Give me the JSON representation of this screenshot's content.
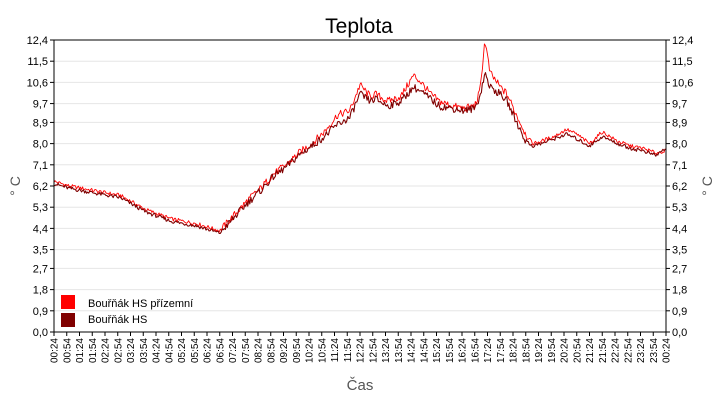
{
  "chart_data": {
    "type": "line",
    "title": "Teplota",
    "xlabel": "Čas",
    "ylabel": "° C",
    "ylim": [
      0,
      12.4
    ],
    "yticks": [
      "0,0",
      "0,9",
      "1,8",
      "2,7",
      "3,5",
      "4,4",
      "5,3",
      "6,2",
      "7,1",
      "8,0",
      "8,9",
      "9,7",
      "10,6",
      "11,5",
      "12,4"
    ],
    "ytick_values": [
      0.0,
      0.9,
      1.8,
      2.7,
      3.5,
      4.4,
      5.3,
      6.2,
      7.1,
      8.0,
      8.9,
      9.7,
      10.6,
      11.5,
      12.4
    ],
    "grid": true,
    "legend_position": "bottom-left",
    "x_range_hours": [
      0.4,
      24.4
    ],
    "xticks": [
      "00:24",
      "00:54",
      "01:24",
      "01:54",
      "02:24",
      "02:54",
      "03:24",
      "03:54",
      "04:24",
      "04:54",
      "05:24",
      "05:54",
      "06:24",
      "06:54",
      "07:24",
      "07:54",
      "08:24",
      "08:54",
      "09:24",
      "09:54",
      "10:24",
      "10:54",
      "11:24",
      "11:54",
      "12:24",
      "12:54",
      "13:24",
      "13:54",
      "14:24",
      "14:54",
      "15:24",
      "15:54",
      "16:24",
      "16:54",
      "17:24",
      "17:54",
      "18:24",
      "18:54",
      "19:24",
      "19:54",
      "20:24",
      "20:54",
      "21:24",
      "21:54",
      "22:24",
      "22:54",
      "23:24",
      "23:54",
      "00:24"
    ],
    "series": [
      {
        "name": "Bouřňák HS přízemní",
        "color": "#ff0000",
        "x": [
          "00:24",
          "01:00",
          "02:00",
          "03:00",
          "04:00",
          "05:00",
          "06:00",
          "06:54",
          "07:30",
          "08:00",
          "08:30",
          "09:00",
          "09:30",
          "10:00",
          "10:30",
          "11:00",
          "11:30",
          "12:00",
          "12:24",
          "12:48",
          "13:00",
          "13:30",
          "14:00",
          "14:30",
          "14:48",
          "15:10",
          "15:30",
          "16:00",
          "16:30",
          "16:54",
          "17:06",
          "17:18",
          "17:30",
          "17:54",
          "18:10",
          "18:30",
          "18:54",
          "19:10",
          "19:30",
          "20:00",
          "20:30",
          "20:54",
          "21:24",
          "21:54",
          "22:30",
          "23:00",
          "23:30",
          "24:00",
          "24:24"
        ],
        "values": [
          6.4,
          6.2,
          6.0,
          5.8,
          5.2,
          4.8,
          4.6,
          4.3,
          5.0,
          5.6,
          6.1,
          6.7,
          7.1,
          7.6,
          8.0,
          8.5,
          9.2,
          9.4,
          10.5,
          10.0,
          10.1,
          9.8,
          10.0,
          10.9,
          10.6,
          10.1,
          9.8,
          9.6,
          9.5,
          9.6,
          10.2,
          12.4,
          11.0,
          10.4,
          10.1,
          9.3,
          8.4,
          8.0,
          8.1,
          8.3,
          8.6,
          8.4,
          8.0,
          8.5,
          8.1,
          7.9,
          7.8,
          7.6,
          7.7
        ]
      },
      {
        "name": "Bouřňák HS",
        "color": "#800000",
        "x": [
          "00:24",
          "01:00",
          "02:00",
          "03:00",
          "04:00",
          "05:00",
          "06:00",
          "06:54",
          "07:30",
          "08:00",
          "08:30",
          "09:00",
          "09:30",
          "10:00",
          "10:30",
          "11:00",
          "11:30",
          "12:00",
          "12:24",
          "12:48",
          "13:00",
          "13:30",
          "14:00",
          "14:30",
          "14:48",
          "15:10",
          "15:30",
          "16:00",
          "16:30",
          "16:54",
          "17:06",
          "17:18",
          "17:30",
          "17:54",
          "18:10",
          "18:30",
          "18:54",
          "19:10",
          "19:30",
          "20:00",
          "20:30",
          "20:54",
          "21:24",
          "21:54",
          "22:30",
          "23:00",
          "23:30",
          "24:00",
          "24:24"
        ],
        "values": [
          6.3,
          6.1,
          5.9,
          5.7,
          5.1,
          4.7,
          4.5,
          4.2,
          4.9,
          5.5,
          6.0,
          6.6,
          7.0,
          7.5,
          7.9,
          8.3,
          8.8,
          9.1,
          10.1,
          9.8,
          9.9,
          9.6,
          9.8,
          10.4,
          10.2,
          9.9,
          9.6,
          9.5,
          9.4,
          9.5,
          10.0,
          11.0,
          10.4,
          10.1,
          9.8,
          9.0,
          8.1,
          7.9,
          8.0,
          8.2,
          8.4,
          8.2,
          7.9,
          8.3,
          8.0,
          7.8,
          7.7,
          7.5,
          7.8
        ]
      }
    ]
  }
}
